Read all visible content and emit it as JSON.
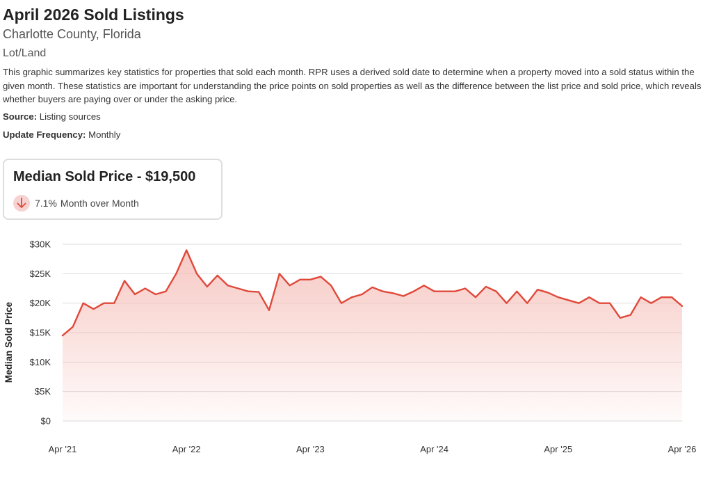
{
  "header": {
    "title": "April 2026 Sold Listings",
    "subtitle": "Charlotte County, Florida",
    "category": "Lot/Land",
    "description": "This graphic summarizes key statistics for properties that sold each month. RPR uses a derived sold date to determine when a property moved into a sold status within the given month. These statistics are important for understanding the price points on sold properties as well as the difference between the list price and sold price, which reveals whether buyers are paying over or under the asking price.",
    "source_label": "Source:",
    "source_value": "Listing sources",
    "frequency_label": "Update Frequency:",
    "frequency_value": "Monthly"
  },
  "stat_card": {
    "title": "Median Sold Price - $19,500",
    "change_pct": "7.1%",
    "change_text": "Month over Month",
    "direction": "down",
    "direction_icon": "arrow-down-icon"
  },
  "colors": {
    "line": "#e0483a",
    "fill_top": "#f4b7b0",
    "arrow_bg": "#f6d3d0",
    "arrow": "#e0483a",
    "grid": "#dddddd"
  },
  "chart_data": {
    "type": "area",
    "ylabel": "Median Sold Price",
    "xlabel": "",
    "ylim": [
      0,
      30000
    ],
    "yticks": [
      0,
      5000,
      10000,
      15000,
      20000,
      25000,
      30000
    ],
    "ytick_labels": [
      "$0",
      "$5K",
      "$10K",
      "$15K",
      "$20K",
      "$25K",
      "$30K"
    ],
    "xtick_labels": [
      "Apr '21",
      "Apr '22",
      "Apr '23",
      "Apr '24",
      "Apr '25",
      "Apr '26"
    ],
    "xtick_indices": [
      0,
      12,
      24,
      36,
      48,
      60
    ],
    "grid": true,
    "series": [
      {
        "values": [
          14500,
          16000,
          20000,
          19000,
          20000,
          20000,
          23800,
          21500,
          22500,
          21500,
          22000,
          25000,
          29000,
          25000,
          22800,
          24700,
          23000,
          22500,
          22000,
          21900,
          18800,
          25000,
          23000,
          24000,
          24000,
          24500,
          23000,
          20000,
          21000,
          21500,
          22700,
          22000,
          21700,
          21200,
          22000,
          23000,
          22000,
          22000,
          22000,
          22500,
          21000,
          22800,
          22000,
          20000,
          22000,
          20000,
          22300,
          21800,
          21000,
          20500,
          20000,
          21000,
          20000,
          20000,
          17500,
          18000,
          21000,
          20000,
          21000,
          21000,
          19500
        ]
      }
    ]
  }
}
